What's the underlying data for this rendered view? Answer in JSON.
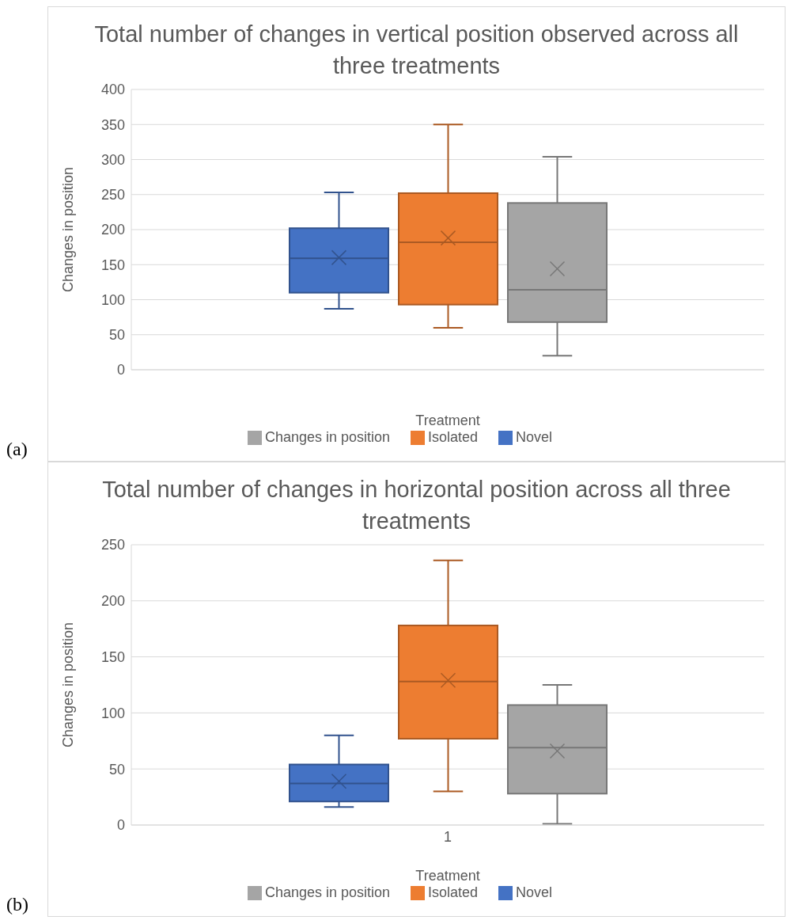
{
  "chart_data": [
    {
      "type": "box",
      "title": "Total number of changes in vertical position observed across all three treatments",
      "xlabel": "Treatment",
      "ylabel": "Changes in position",
      "categories": [
        null
      ],
      "ylim": [
        0,
        400
      ],
      "yticks": [
        0,
        50,
        100,
        150,
        200,
        250,
        300,
        350,
        400
      ],
      "grid": "y",
      "legend": "bottom",
      "tick_labels": "y",
      "annotations": [
        "(a)"
      ],
      "series": [
        {
          "name": "Novel",
          "color": "#4472c4",
          "boxes": [
            {
              "low": 87,
              "q1": 110,
              "median": 159,
              "q3": 202,
              "high": 253,
              "mean": 160
            }
          ]
        },
        {
          "name": "Isolated",
          "color": "#ed7d31",
          "boxes": [
            {
              "low": 60,
              "q1": 93,
              "median": 182,
              "q3": 252,
              "high": 350,
              "mean": 188
            }
          ]
        },
        {
          "name": "Changes in position",
          "color": "#a5a5a5",
          "boxes": [
            {
              "low": 20,
              "q1": 68,
              "median": 114,
              "q3": 238,
              "high": 304,
              "mean": 144
            }
          ]
        }
      ]
    },
    {
      "type": "box",
      "title": "Total number of changes in horizontal position across all three treatments",
      "xlabel": "Treatment",
      "ylabel": "Changes in position",
      "categories": [
        "1"
      ],
      "ylim": [
        0,
        250
      ],
      "yticks": [
        0,
        50,
        100,
        150,
        200,
        250
      ],
      "grid": "y",
      "legend": "bottom",
      "annotations": [
        "(b)"
      ],
      "series": [
        {
          "name": "Novel",
          "color": "#4472c4",
          "boxes": [
            {
              "low": 16,
              "q1": 21,
              "median": 37,
              "q3": 54,
              "high": 80,
              "mean": 39
            }
          ]
        },
        {
          "name": "Isolated",
          "color": "#ed7d31",
          "boxes": [
            {
              "low": 30,
              "q1": 77,
              "median": 128,
              "q3": 178,
              "high": 236,
              "mean": 129
            }
          ]
        },
        {
          "name": "Changes in position",
          "color": "#a5a5a5",
          "boxes": [
            {
              "low": 1,
              "q1": 28,
              "median": 69,
              "q3": 107,
              "high": 125,
              "mean": 66
            }
          ]
        }
      ]
    }
  ]
}
